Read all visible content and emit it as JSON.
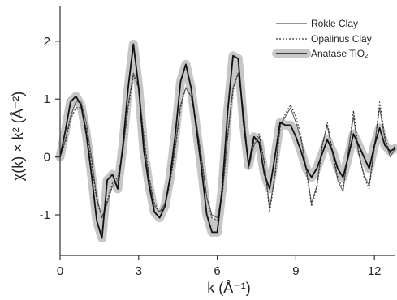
{
  "chart_data": {
    "type": "line",
    "xlabel": "k (Å⁻¹)",
    "ylabel": "χ(k) × k² (Å⁻²)",
    "xlim": [
      0,
      12.8
    ],
    "ylim": [
      -1.7,
      2.6
    ],
    "xticks": [
      0,
      3,
      6,
      9,
      12
    ],
    "yticks": [
      -1,
      0,
      1,
      2
    ],
    "grid": false,
    "legend_position": "top-right",
    "series": [
      {
        "name": "Rokle Clay",
        "color": "#555555",
        "style": "solid-thin",
        "x": [
          0,
          0.2,
          0.4,
          0.6,
          0.8,
          1.0,
          1.2,
          1.4,
          1.6,
          1.8,
          2.0,
          2.2,
          2.4,
          2.6,
          2.8,
          3.0,
          3.2,
          3.4,
          3.6,
          3.8,
          4.0,
          4.2,
          4.4,
          4.6,
          4.8,
          5.0,
          5.2,
          5.4,
          5.6,
          5.8,
          6.0,
          6.2,
          6.4,
          6.6,
          6.8,
          7.0,
          7.2,
          7.4,
          7.6,
          7.8,
          8.0,
          8.2,
          8.4,
          8.6,
          8.8,
          9.0,
          9.2,
          9.4,
          9.6,
          9.8,
          10.0,
          10.2,
          10.4,
          10.6,
          10.8,
          11.0,
          11.2,
          11.4,
          11.6,
          11.8,
          12.0,
          12.2,
          12.4,
          12.6,
          12.8
        ],
        "y": [
          0,
          0.3,
          0.7,
          0.95,
          0.95,
          0.6,
          0.0,
          -0.7,
          -1.05,
          -0.8,
          -0.5,
          -0.4,
          0.1,
          0.9,
          1.45,
          1.2,
          0.3,
          -0.4,
          -0.85,
          -0.95,
          -0.8,
          -0.4,
          0.2,
          0.9,
          1.2,
          1.05,
          0.6,
          0.0,
          -0.7,
          -1.0,
          -1.05,
          -0.6,
          0.4,
          1.2,
          1.45,
          0.8,
          -0.2,
          0.2,
          0.35,
          -0.1,
          -0.9,
          -0.3,
          0.55,
          0.7,
          0.85,
          0.6,
          0.3,
          -0.2,
          -0.8,
          -0.5,
          0.2,
          0.55,
          0.05,
          -0.4,
          -0.6,
          0.1,
          0.7,
          0.05,
          -0.3,
          -0.5,
          0.2,
          0.85,
          0.3,
          0.0,
          0.15
        ]
      },
      {
        "name": "Opalinus Clay",
        "color": "#333333",
        "style": "dotted",
        "x": [
          0,
          0.2,
          0.4,
          0.6,
          0.8,
          1.0,
          1.2,
          1.4,
          1.6,
          1.8,
          2.0,
          2.2,
          2.4,
          2.6,
          2.8,
          3.0,
          3.2,
          3.4,
          3.6,
          3.8,
          4.0,
          4.2,
          4.4,
          4.6,
          4.8,
          5.0,
          5.2,
          5.4,
          5.6,
          5.8,
          6.0,
          6.2,
          6.4,
          6.6,
          6.8,
          7.0,
          7.2,
          7.4,
          7.6,
          7.8,
          8.0,
          8.2,
          8.4,
          8.6,
          8.8,
          9.0,
          9.2,
          9.4,
          9.6,
          9.8,
          10.0,
          10.2,
          10.4,
          10.6,
          10.8,
          11.0,
          11.2,
          11.4,
          11.6,
          11.8,
          12.0,
          12.2,
          12.4,
          12.6,
          12.8
        ],
        "y": [
          0,
          0.25,
          0.65,
          0.85,
          0.85,
          0.5,
          -0.1,
          -0.75,
          -1.05,
          -0.75,
          -0.45,
          -0.35,
          0.1,
          0.85,
          1.4,
          1.2,
          0.35,
          -0.35,
          -0.8,
          -0.95,
          -0.85,
          -0.45,
          0.15,
          0.85,
          1.2,
          1.05,
          0.6,
          -0.05,
          -0.7,
          -1.05,
          -1.1,
          -0.65,
          0.35,
          1.15,
          1.45,
          0.8,
          -0.15,
          0.25,
          0.4,
          -0.1,
          -0.95,
          -0.35,
          0.5,
          0.75,
          0.9,
          0.7,
          0.35,
          -0.25,
          -0.85,
          -0.55,
          0.15,
          0.6,
          0.1,
          -0.35,
          -0.55,
          0.05,
          0.8,
          0.1,
          -0.35,
          -0.55,
          0.15,
          0.95,
          0.35,
          0.05,
          0.2
        ]
      },
      {
        "name": "Anatase TiO₂",
        "color": "#111111",
        "style": "solid-thick-with-grey-halo",
        "x": [
          0,
          0.2,
          0.4,
          0.6,
          0.8,
          1.0,
          1.2,
          1.4,
          1.6,
          1.8,
          2.0,
          2.2,
          2.4,
          2.6,
          2.8,
          3.0,
          3.2,
          3.4,
          3.6,
          3.8,
          4.0,
          4.2,
          4.4,
          4.6,
          4.8,
          5.0,
          5.2,
          5.4,
          5.6,
          5.8,
          6.0,
          6.2,
          6.4,
          6.6,
          6.8,
          7.0,
          7.2,
          7.4,
          7.6,
          7.8,
          8.0,
          8.2,
          8.4,
          8.6,
          8.8,
          9.0,
          9.2,
          9.4,
          9.6,
          9.8,
          10.0,
          10.2,
          10.4,
          10.6,
          10.8,
          11.0,
          11.2,
          11.4,
          11.6,
          11.8,
          12.0,
          12.2,
          12.4,
          12.6,
          12.8
        ],
        "y": [
          0,
          0.45,
          0.95,
          1.05,
          0.9,
          0.4,
          -0.3,
          -1.1,
          -1.4,
          -0.4,
          -0.3,
          -0.55,
          0.2,
          1.2,
          1.95,
          1.2,
          0.1,
          -0.5,
          -0.95,
          -1.05,
          -0.85,
          -0.35,
          0.4,
          1.3,
          1.6,
          1.2,
          0.5,
          -0.2,
          -1.0,
          -1.3,
          -1.3,
          -0.5,
          0.8,
          1.75,
          1.7,
          0.6,
          -0.15,
          0.35,
          0.25,
          -0.3,
          -0.55,
          0.0,
          0.6,
          0.55,
          0.55,
          0.35,
          0.1,
          -0.2,
          -0.35,
          -0.2,
          0.05,
          0.3,
          0.1,
          -0.2,
          -0.35,
          0.0,
          0.4,
          0.2,
          0.0,
          -0.2,
          0.2,
          0.5,
          0.2,
          0.1,
          0.15
        ]
      }
    ]
  }
}
